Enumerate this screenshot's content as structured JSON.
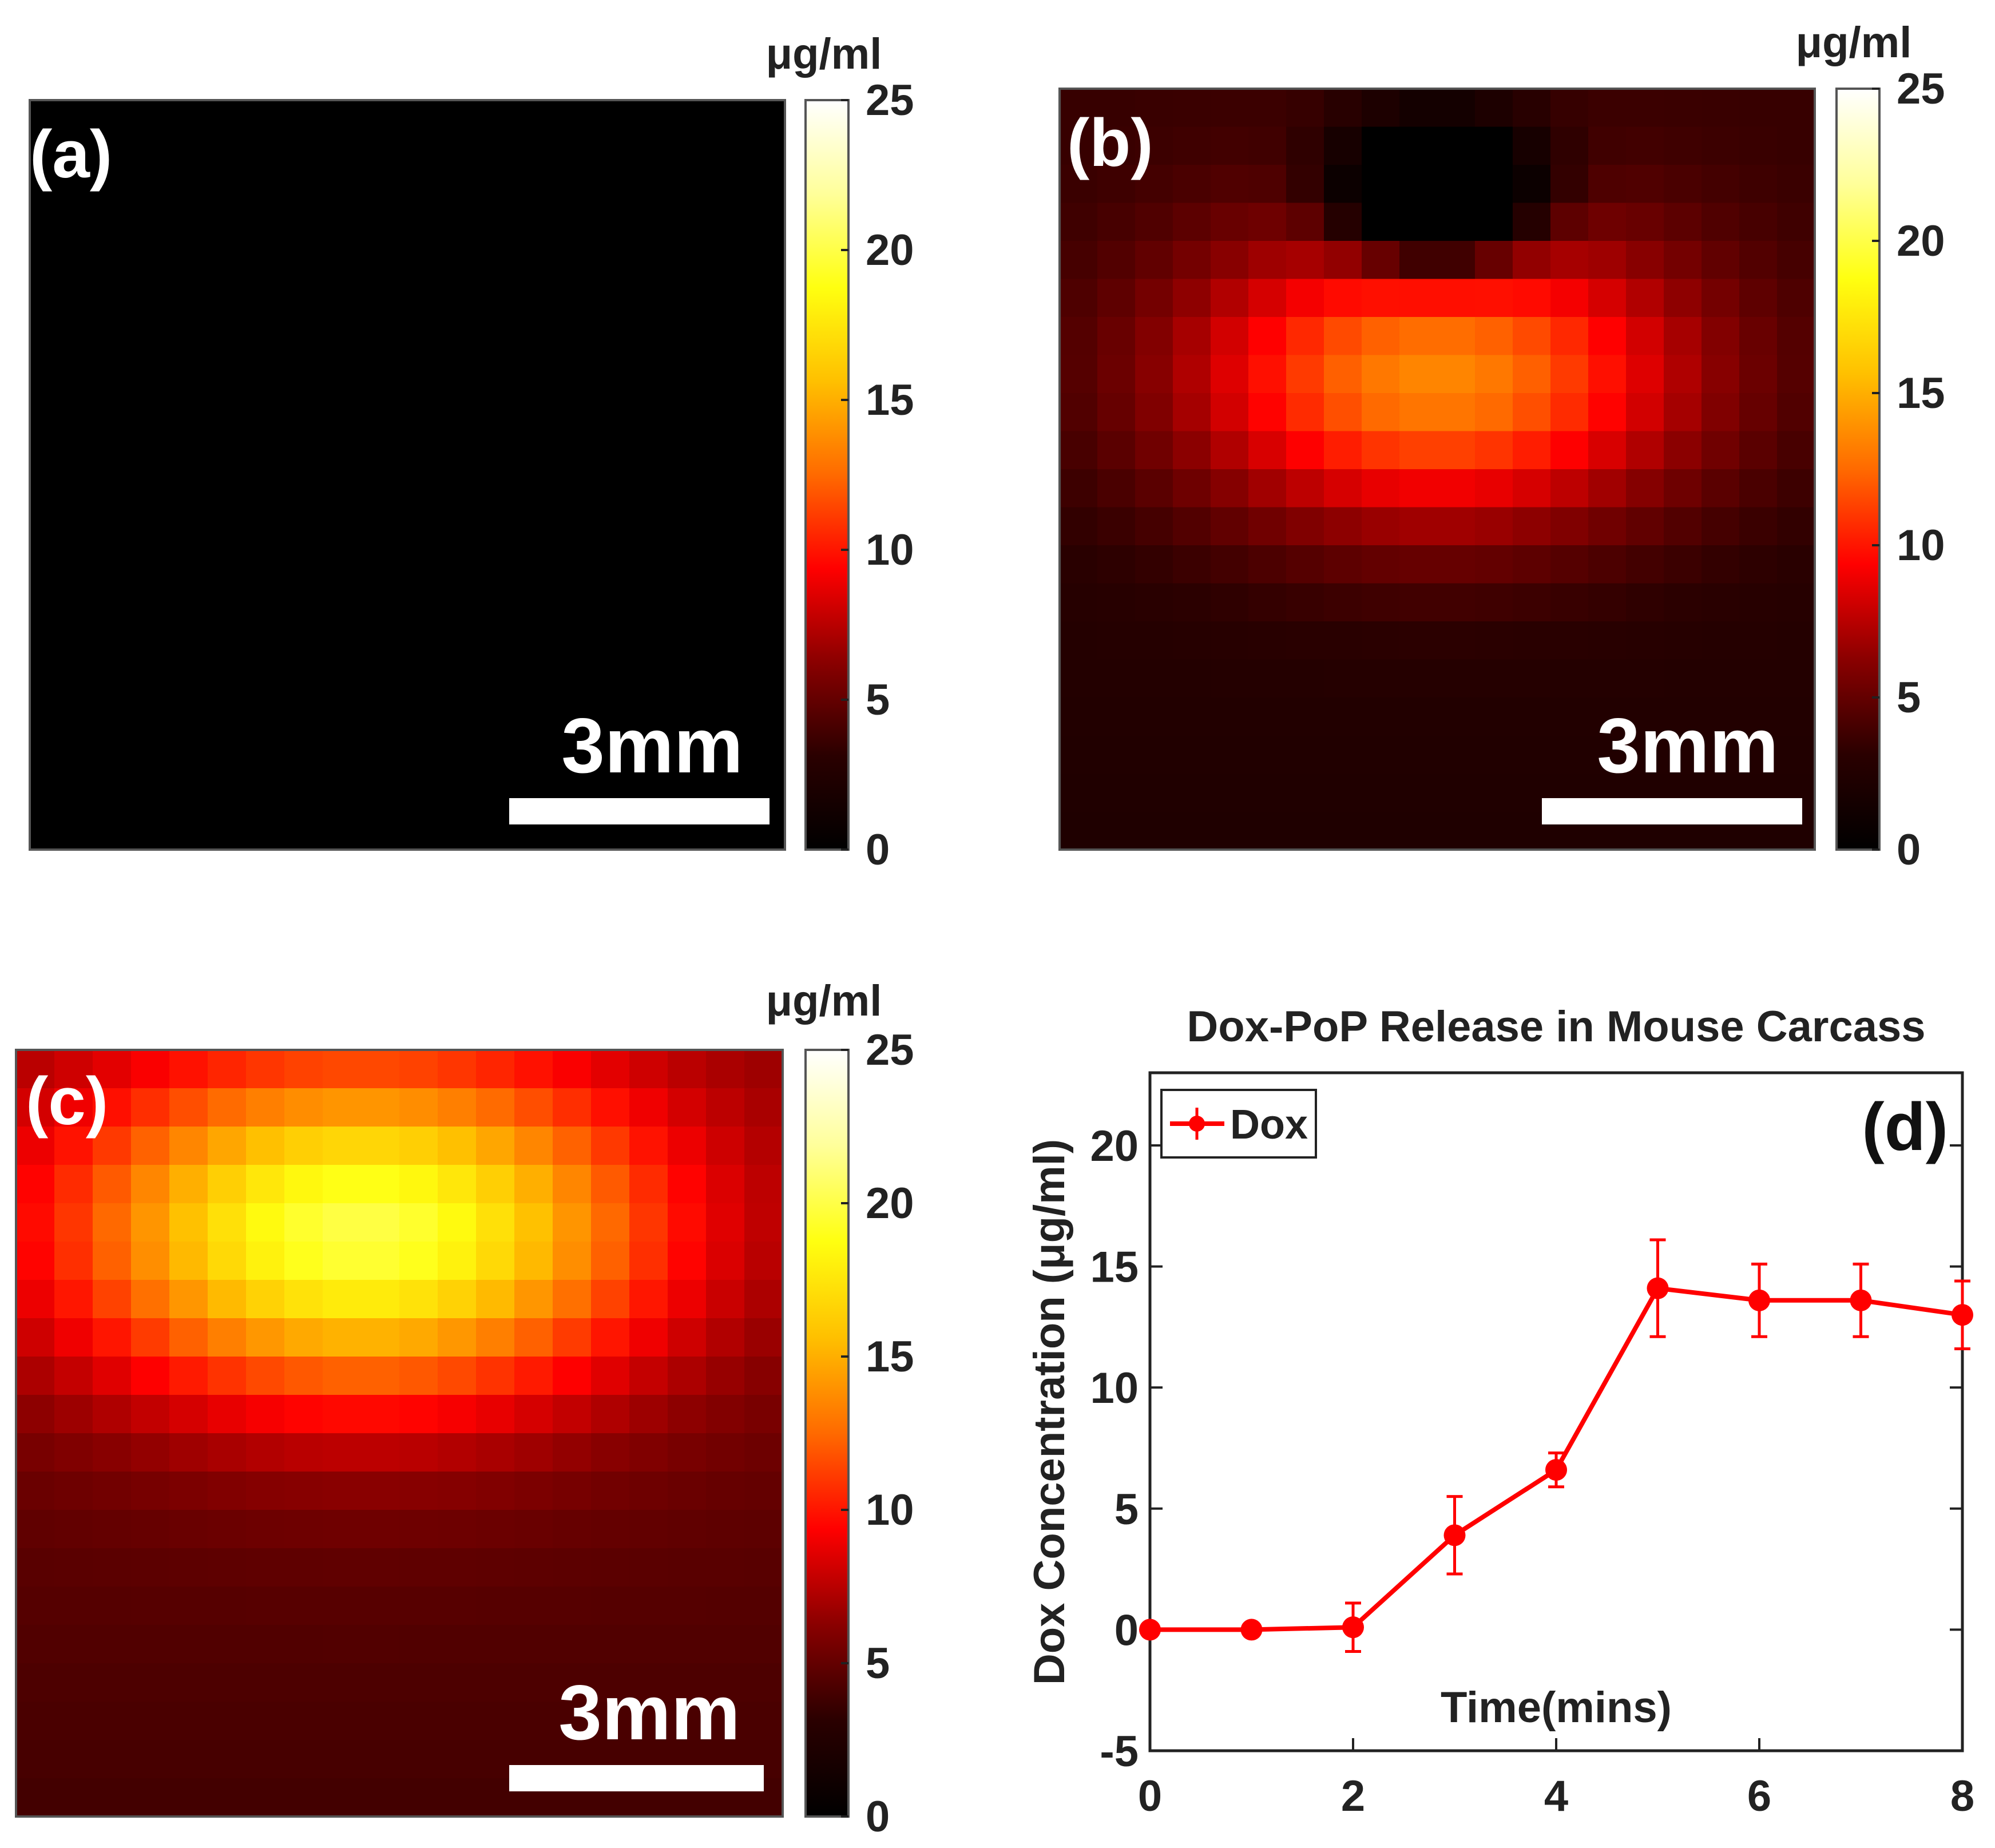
{
  "colormap": {
    "name": "hot",
    "unit": "μg/ml",
    "ticks": [
      "0",
      "5",
      "10",
      "15",
      "20",
      "25"
    ],
    "range": [
      0,
      25
    ],
    "stops": [
      "#000000",
      "#2a0000",
      "#8a0000",
      "#ff0000",
      "#ff6a00",
      "#ffc000",
      "#ffff10",
      "#ffff9a",
      "#ffffff"
    ]
  },
  "panels": [
    {
      "id": "a",
      "label": "(a)",
      "scale_bar": "3mm",
      "peak": 0,
      "hot_center": [
        0.5,
        0.2
      ],
      "hot_spread": [
        0.3,
        0.15
      ],
      "cold_center": [
        0.5,
        0.12
      ],
      "cold_depth": 0,
      "baseline": 0
    },
    {
      "id": "b",
      "label": "(b)",
      "scale_bar": "3mm",
      "peak": 14,
      "hot_center": [
        0.5,
        0.38
      ],
      "hot_spread": [
        0.34,
        0.2
      ],
      "cold_center": [
        0.5,
        0.14
      ],
      "cold_depth": 13,
      "baseline": 3.5
    },
    {
      "id": "c",
      "label": "(c)",
      "scale_bar": "3mm",
      "peak": 20.5,
      "hot_center": [
        0.45,
        0.24
      ],
      "hot_spread": [
        0.38,
        0.22
      ],
      "cold_center": [
        0.5,
        0.1
      ],
      "cold_depth": 0,
      "baseline": 6.0
    }
  ],
  "chart_data": {
    "type": "line",
    "title": "Dox-PoP Release in Mouse Carcass",
    "panel_label": "(d)",
    "xlabel": "Time(mins)",
    "ylabel": "Dox Concentration (μg/ml)",
    "xlim": [
      0,
      8
    ],
    "ylim": [
      -5,
      23
    ],
    "xticks": [
      "0",
      "2",
      "4",
      "6",
      "8"
    ],
    "yticks": [
      "-5",
      "0",
      "5",
      "10",
      "15",
      "20"
    ],
    "legend": {
      "position": "top-left",
      "entries": [
        "Dox"
      ]
    },
    "series": [
      {
        "name": "Dox",
        "color": "#ff0000",
        "x": [
          0,
          1,
          2,
          3,
          4,
          5,
          6,
          7,
          8
        ],
        "y": [
          0,
          0,
          0.1,
          3.9,
          6.6,
          14.1,
          13.6,
          13.6,
          13.0
        ],
        "err": [
          0,
          0,
          1.0,
          1.6,
          0.7,
          2.0,
          1.5,
          1.5,
          1.4
        ]
      }
    ]
  }
}
